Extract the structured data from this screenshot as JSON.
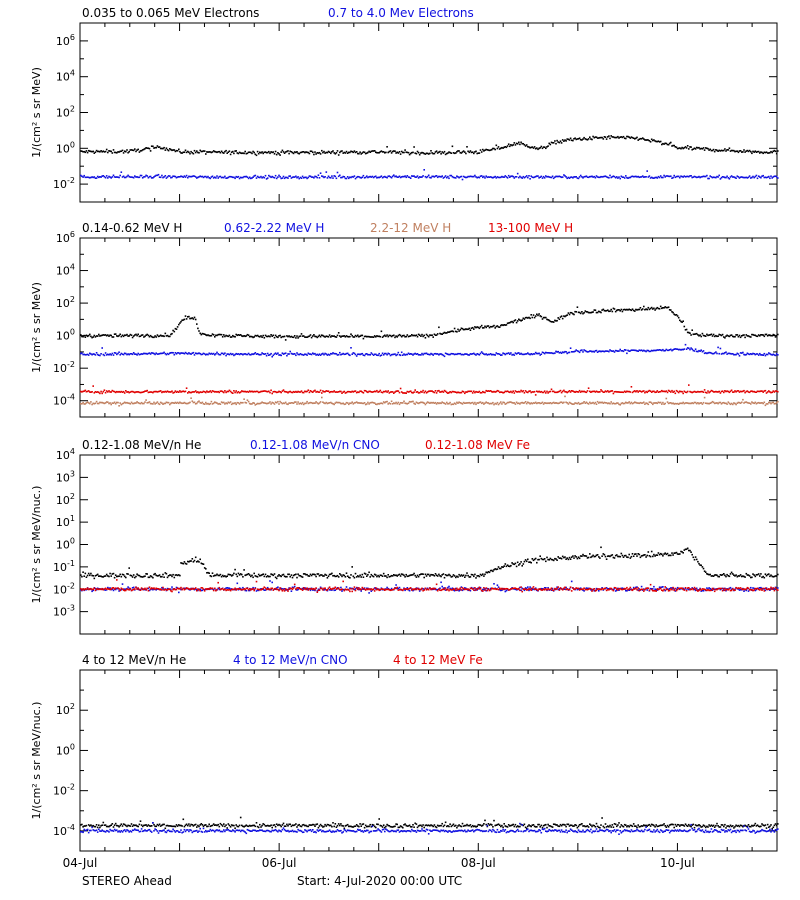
{
  "colors": {
    "black": "#000000",
    "blue": "#1010e0",
    "tan": "#c08060",
    "red": "#e00000"
  },
  "x_axis": {
    "tick_labels": [
      "04-Jul",
      "06-Jul",
      "08-Jul",
      "10-Jul"
    ],
    "days_shown": 7
  },
  "footer": {
    "spacecraft": "STEREO Ahead",
    "start": "Start:  4-Jul-2020 00:00 UTC"
  },
  "chart_data": [
    {
      "type": "scatter",
      "log_y": true,
      "ylabel": "1/(cm² s sr MeV)",
      "ylim_log10": [
        -3,
        7
      ],
      "ytick_exponents": [
        -2,
        0,
        2,
        4,
        6
      ],
      "legend": [
        {
          "label": "0.035 to 0.065 MeV Electrons",
          "color": "black"
        },
        {
          "label": "0.7 to 4.0 Mev Electrons",
          "color": "blue"
        }
      ],
      "series": [
        {
          "name": "0.035 to 0.065 MeV Electrons",
          "color": "black",
          "x": [
            0,
            0.5,
            0.8,
            1.0,
            1.5,
            2.0,
            2.5,
            3.0,
            3.5,
            4.0,
            4.2,
            4.4,
            4.6,
            4.8,
            5.0,
            5.3,
            5.6,
            5.8,
            6.0,
            6.4,
            6.8,
            7.0
          ],
          "y": [
            0.7,
            0.75,
            1.3,
            0.7,
            0.65,
            0.65,
            0.65,
            0.7,
            0.6,
            0.7,
            1.1,
            2.2,
            1.0,
            2.8,
            3.6,
            4.5,
            4.0,
            2.5,
            1.2,
            0.9,
            0.7,
            0.7
          ]
        },
        {
          "name": "0.7 to 4.0 Mev Electrons",
          "color": "blue",
          "x": [
            0,
            1,
            2,
            3,
            4,
            5,
            6,
            7
          ],
          "y": [
            0.028,
            0.028,
            0.027,
            0.028,
            0.028,
            0.028,
            0.028,
            0.027
          ]
        }
      ]
    },
    {
      "type": "scatter",
      "log_y": true,
      "ylabel": "1/(cm² s sr MeV)",
      "ylim_log10": [
        -5,
        6
      ],
      "ytick_exponents": [
        -4,
        -2,
        0,
        2,
        4,
        6
      ],
      "legend": [
        {
          "label": "0.14-0.62 MeV H",
          "color": "black"
        },
        {
          "label": "0.62-2.22 MeV H",
          "color": "blue"
        },
        {
          "label": "2.2-12 MeV H",
          "color": "tan"
        },
        {
          "label": "13-100 MeV H",
          "color": "red"
        }
      ],
      "series": [
        {
          "name": "0.14-0.62 MeV H",
          "color": "black",
          "x": [
            0,
            0.5,
            0.9,
            1.05,
            1.15,
            1.2,
            1.3,
            1.5,
            2.0,
            2.5,
            3.0,
            3.5,
            3.8,
            4.0,
            4.2,
            4.4,
            4.6,
            4.75,
            4.9,
            5.0,
            5.3,
            5.6,
            5.9,
            6.0,
            6.1,
            6.2,
            6.3,
            6.5,
            6.8,
            7.0
          ],
          "y": [
            1.1,
            1.1,
            1.2,
            15,
            12,
            1.5,
            1.3,
            1.1,
            1.0,
            1.0,
            1.0,
            1.1,
            2.5,
            3.5,
            4,
            10,
            20,
            8,
            25,
            30,
            40,
            45,
            60,
            15,
            1.5,
            1.2,
            1.2,
            1.1,
            1.1,
            1.2
          ]
        },
        {
          "name": "0.62-2.22 MeV H",
          "color": "blue",
          "x": [
            0,
            1,
            2,
            3,
            4,
            4.6,
            5.0,
            5.5,
            6.0,
            6.1,
            6.3,
            6.6,
            7.0
          ],
          "y": [
            0.08,
            0.09,
            0.08,
            0.08,
            0.08,
            0.09,
            0.12,
            0.13,
            0.15,
            0.18,
            0.1,
            0.08,
            0.08
          ]
        },
        {
          "name": "2.2-12 MeV H",
          "color": "tan",
          "x": [
            0,
            7
          ],
          "y": [
            8e-05,
            8e-05
          ]
        },
        {
          "name": "13-100 MeV H",
          "color": "red",
          "x": [
            0,
            7
          ],
          "y": [
            0.0004,
            0.0004
          ]
        }
      ]
    },
    {
      "type": "scatter",
      "log_y": true,
      "ylabel": "1/(cm² s sr MeV/nuc.)",
      "ylim_log10": [
        -4,
        4
      ],
      "ytick_exponents": [
        -3,
        -2,
        -1,
        0,
        1,
        2,
        3,
        4
      ],
      "legend": [
        {
          "label": "0.12-1.08 MeV/n He",
          "color": "black"
        },
        {
          "label": "0.12-1.08 MeV/n CNO",
          "color": "blue"
        },
        {
          "label": "0.12-1.08 MeV Fe",
          "color": "red"
        }
      ],
      "series": [
        {
          "name": "0.12-1.08 MeV/n He",
          "color": "black",
          "x": [
            0,
            1,
            1.0,
            1.1,
            1.2,
            1.3,
            2,
            3,
            3.5,
            4,
            4.2,
            4.5,
            5,
            5.5,
            6,
            6.1,
            6.3,
            7
          ],
          "y": [
            0.045,
            0.045,
            0.15,
            0.2,
            0.2,
            0.045,
            0.045,
            0.045,
            0.045,
            0.045,
            0.1,
            0.2,
            0.3,
            0.35,
            0.4,
            0.7,
            0.045,
            0.045
          ]
        },
        {
          "name": "0.12-1.08 MeV/n CNO",
          "color": "blue",
          "x": [
            0,
            7
          ],
          "y": [
            0.011,
            0.011
          ]
        },
        {
          "name": "0.12-1.08 MeV Fe",
          "color": "red",
          "x": [
            0,
            7
          ],
          "y": [
            0.011,
            0.011
          ]
        }
      ]
    },
    {
      "type": "scatter",
      "log_y": true,
      "ylabel": "1/(cm² s sr MeV/nuc.)",
      "ylim_log10": [
        -5,
        4
      ],
      "ytick_exponents": [
        -4,
        -2,
        0,
        2
      ],
      "legend": [
        {
          "label": "4 to 12 MeV/n He",
          "color": "black"
        },
        {
          "label": "4 to 12 MeV/n CNO",
          "color": "blue"
        },
        {
          "label": "4 to 12 MeV Fe",
          "color": "red"
        }
      ],
      "series": [
        {
          "name": "4 to 12 MeV/n He",
          "color": "black",
          "x": [
            0,
            7
          ],
          "y": [
            0.0002,
            0.0002
          ]
        },
        {
          "name": "4 to 12 MeV/n CNO",
          "color": "blue",
          "x": [
            0,
            7
          ],
          "y": [
            0.00011,
            0.00011
          ]
        }
      ]
    }
  ]
}
